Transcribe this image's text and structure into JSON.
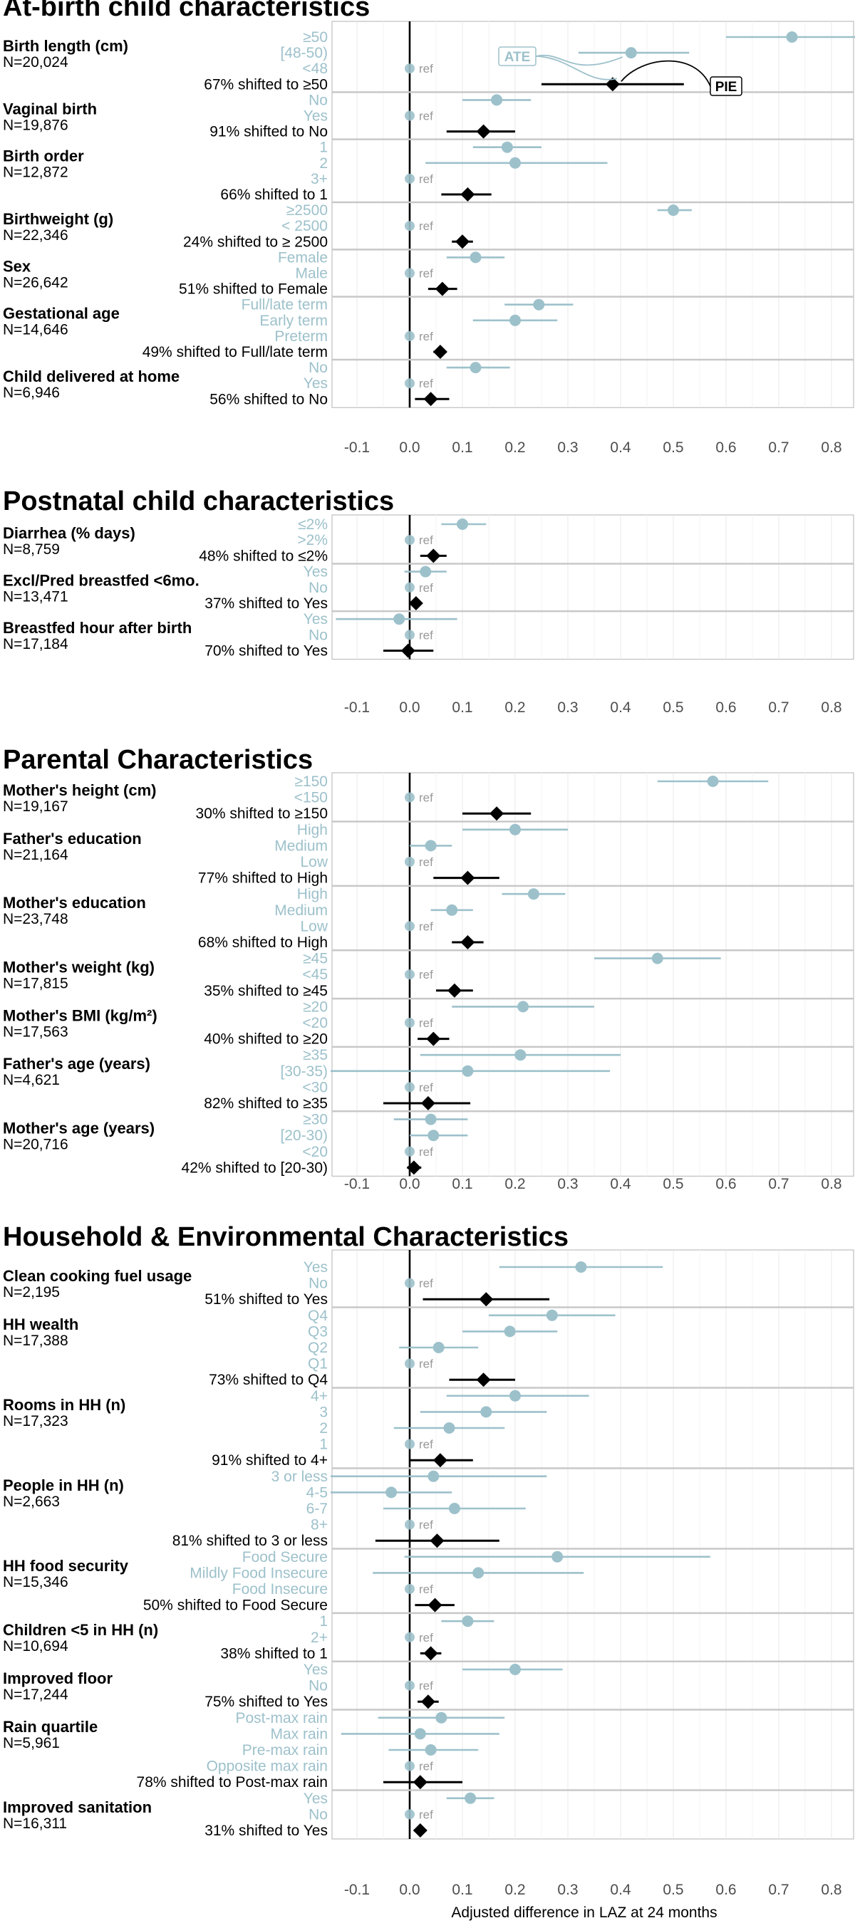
{
  "chart_data": {
    "type": "forest",
    "xlabel": "Adjusted difference in LAZ at 24 months",
    "xlim": [
      -0.2,
      0.85
    ],
    "ticks": [
      "-0.1",
      "0.0",
      "0.1",
      "0.2",
      "0.3",
      "0.4",
      "0.5",
      "0.6",
      "0.7",
      "0.8"
    ],
    "tick_values": [
      -0.1,
      0,
      0.1,
      0.2,
      0.3,
      0.4,
      0.5,
      0.6,
      0.7,
      0.8
    ],
    "ref_label": "ref",
    "colors": {
      "ate": "#9dc1cb",
      "pie": "#000000",
      "level_text": "#9dc1cb",
      "panel_border": "#bfbfbf",
      "grid": "#e8e8e8",
      "separator": "#c8c8c8"
    },
    "annotations": {
      "ate_label": "ATE",
      "pie_label": "PIE"
    },
    "panels": [
      {
        "title": "At-birth child characteristics",
        "variables": [
          {
            "name": "Birth length (cm)",
            "n": "N=20,024",
            "levels": [
              {
                "label": "≥50",
                "est": 0.725,
                "lo": 0.6,
                "hi": 0.85
              },
              {
                "label": "[48-50)",
                "est": 0.42,
                "lo": 0.32,
                "hi": 0.53
              },
              {
                "label": "<48",
                "ref": true
              }
            ],
            "pie": {
              "label": "67% shifted to ≥50",
              "est": 0.385,
              "lo": 0.25,
              "hi": 0.52
            }
          },
          {
            "name": "Vaginal birth",
            "n": "N=19,876",
            "levels": [
              {
                "label": "No",
                "est": 0.165,
                "lo": 0.1,
                "hi": 0.23
              },
              {
                "label": "Yes",
                "ref": true
              }
            ],
            "pie": {
              "label": "91% shifted to No",
              "est": 0.14,
              "lo": 0.07,
              "hi": 0.2
            }
          },
          {
            "name": "Birth order",
            "n": "N=12,872",
            "levels": [
              {
                "label": "1",
                "est": 0.185,
                "lo": 0.12,
                "hi": 0.25
              },
              {
                "label": "2",
                "est": 0.2,
                "lo": 0.03,
                "hi": 0.375
              },
              {
                "label": "3+",
                "ref": true
              }
            ],
            "pie": {
              "label": "66% shifted to 1",
              "est": 0.11,
              "lo": 0.06,
              "hi": 0.155
            }
          },
          {
            "name": "Birthweight (g)",
            "n": "N=22,346",
            "levels": [
              {
                "label": "≥2500",
                "est": 0.5,
                "lo": 0.47,
                "hi": 0.535
              },
              {
                "label": "< 2500",
                "ref": true
              }
            ],
            "pie": {
              "label": "24% shifted to ≥ 2500",
              "est": 0.1,
              "lo": 0.08,
              "hi": 0.12
            }
          },
          {
            "name": "Sex",
            "n": "N=26,642",
            "levels": [
              {
                "label": "Female",
                "est": 0.125,
                "lo": 0.07,
                "hi": 0.18
              },
              {
                "label": "Male",
                "ref": true
              }
            ],
            "pie": {
              "label": "51% shifted to Female",
              "est": 0.062,
              "lo": 0.035,
              "hi": 0.09
            }
          },
          {
            "name": "Gestational age",
            "n": "N=14,646",
            "levels": [
              {
                "label": "Full/late term",
                "est": 0.245,
                "lo": 0.18,
                "hi": 0.31
              },
              {
                "label": "Early term",
                "est": 0.2,
                "lo": 0.12,
                "hi": 0.28
              },
              {
                "label": "Preterm",
                "ref": true
              }
            ],
            "pie": {
              "label": "49% shifted to Full/late term",
              "est": 0.058,
              "lo": 0.045,
              "hi": 0.07
            }
          },
          {
            "name": "Child delivered at home",
            "n": "N=6,946",
            "levels": [
              {
                "label": "No",
                "est": 0.125,
                "lo": 0.07,
                "hi": 0.19
              },
              {
                "label": "Yes",
                "ref": true
              }
            ],
            "pie": {
              "label": "56% shifted to No",
              "est": 0.04,
              "lo": 0.01,
              "hi": 0.075
            }
          }
        ]
      },
      {
        "title": "Postnatal child characteristics",
        "variables": [
          {
            "name": "Diarrhea (% days)",
            "n": "N=8,759",
            "levels": [
              {
                "label": "≤2%",
                "est": 0.1,
                "lo": 0.06,
                "hi": 0.145
              },
              {
                "label": ">2%",
                "ref": true
              }
            ],
            "pie": {
              "label": "48% shifted to ≤2%",
              "est": 0.045,
              "lo": 0.02,
              "hi": 0.07
            }
          },
          {
            "name": "Excl/Pred breastfed <6mo.",
            "n": "N=13,471",
            "levels": [
              {
                "label": "Yes",
                "est": 0.03,
                "lo": -0.01,
                "hi": 0.07
              },
              {
                "label": "No",
                "ref": true
              }
            ],
            "pie": {
              "label": "37% shifted to Yes",
              "est": 0.012,
              "lo": 0.002,
              "hi": 0.022
            }
          },
          {
            "name": "Breastfed hour after birth",
            "n": "N=17,184",
            "levels": [
              {
                "label": "Yes",
                "est": -0.02,
                "lo": -0.14,
                "hi": 0.09
              },
              {
                "label": "No",
                "ref": true
              }
            ],
            "pie": {
              "label": "70% shifted to Yes",
              "est": -0.003,
              "lo": -0.05,
              "hi": 0.045
            }
          }
        ]
      },
      {
        "title": "Parental Characteristics",
        "variables": [
          {
            "name": "Mother's height (cm)",
            "n": "N=19,167",
            "levels": [
              {
                "label": "≥150",
                "est": 0.575,
                "lo": 0.47,
                "hi": 0.68
              },
              {
                "label": "<150",
                "ref": true
              }
            ],
            "pie": {
              "label": "30% shifted to ≥150",
              "est": 0.165,
              "lo": 0.1,
              "hi": 0.23
            }
          },
          {
            "name": "Father's education",
            "n": "N=21,164",
            "levels": [
              {
                "label": "High",
                "est": 0.2,
                "lo": 0.1,
                "hi": 0.3
              },
              {
                "label": "Medium",
                "est": 0.04,
                "lo": 0.0,
                "hi": 0.08
              },
              {
                "label": "Low",
                "ref": true
              }
            ],
            "pie": {
              "label": "77% shifted to High",
              "est": 0.11,
              "lo": 0.045,
              "hi": 0.17
            }
          },
          {
            "name": "Mother's education",
            "n": "N=23,748",
            "levels": [
              {
                "label": "High",
                "est": 0.235,
                "lo": 0.175,
                "hi": 0.295
              },
              {
                "label": "Medium",
                "est": 0.08,
                "lo": 0.04,
                "hi": 0.12
              },
              {
                "label": "Low",
                "ref": true
              }
            ],
            "pie": {
              "label": "68% shifted to High",
              "est": 0.11,
              "lo": 0.08,
              "hi": 0.14
            }
          },
          {
            "name": "Mother's weight (kg)",
            "n": "N=17,815",
            "levels": [
              {
                "label": "≥45",
                "est": 0.47,
                "lo": 0.35,
                "hi": 0.59
              },
              {
                "label": "<45",
                "ref": true
              }
            ],
            "pie": {
              "label": "35% shifted to ≥45",
              "est": 0.085,
              "lo": 0.05,
              "hi": 0.12
            }
          },
          {
            "name": "Mother's BMI (kg/m²)",
            "n": "N=17,563",
            "levels": [
              {
                "label": "≥20",
                "est": 0.215,
                "lo": 0.08,
                "hi": 0.35
              },
              {
                "label": "<20",
                "ref": true
              }
            ],
            "pie": {
              "label": "40% shifted to ≥20",
              "est": 0.045,
              "lo": 0.015,
              "hi": 0.075
            }
          },
          {
            "name": "Father's age (years)",
            "n": "N=4,621",
            "levels": [
              {
                "label": "≥35",
                "est": 0.21,
                "lo": 0.02,
                "hi": 0.4
              },
              {
                "label": "[30-35)",
                "est": 0.11,
                "lo": -0.15,
                "hi": 0.38
              },
              {
                "label": "<30",
                "ref": true
              }
            ],
            "pie": {
              "label": "82% shifted to ≥35",
              "est": 0.035,
              "lo": -0.05,
              "hi": 0.115
            }
          },
          {
            "name": "Mother's age (years)",
            "n": "N=20,716",
            "levels": [
              {
                "label": "≥30",
                "est": 0.04,
                "lo": -0.03,
                "hi": 0.11
              },
              {
                "label": "[20-30)",
                "est": 0.045,
                "lo": 0.0,
                "hi": 0.11
              },
              {
                "label": "<20",
                "ref": true
              }
            ],
            "pie": {
              "label": "42% shifted to [20-30)",
              "est": 0.008,
              "lo": -0.005,
              "hi": 0.022
            }
          }
        ]
      },
      {
        "title": "Household & Environmental Characteristics",
        "variables": [
          {
            "name": "Clean cooking fuel usage",
            "n": "N=2,195",
            "levels": [
              {
                "label": "Yes",
                "est": 0.325,
                "lo": 0.17,
                "hi": 0.48
              },
              {
                "label": "No",
                "ref": true
              }
            ],
            "pie": {
              "label": "51% shifted to Yes",
              "est": 0.145,
              "lo": 0.025,
              "hi": 0.265
            }
          },
          {
            "name": "HH wealth",
            "n": "N=17,388",
            "levels": [
              {
                "label": "Q4",
                "est": 0.27,
                "lo": 0.15,
                "hi": 0.39
              },
              {
                "label": "Q3",
                "est": 0.19,
                "lo": 0.1,
                "hi": 0.28
              },
              {
                "label": "Q2",
                "est": 0.055,
                "lo": -0.02,
                "hi": 0.13
              },
              {
                "label": "Q1",
                "ref": true
              }
            ],
            "pie": {
              "label": "73% shifted to Q4",
              "est": 0.14,
              "lo": 0.075,
              "hi": 0.2
            }
          },
          {
            "name": "Rooms in HH (n)",
            "n": "N=17,323",
            "levels": [
              {
                "label": "4+",
                "est": 0.2,
                "lo": 0.07,
                "hi": 0.34
              },
              {
                "label": "3",
                "est": 0.145,
                "lo": 0.02,
                "hi": 0.26
              },
              {
                "label": "2",
                "est": 0.075,
                "lo": -0.03,
                "hi": 0.18
              },
              {
                "label": "1",
                "ref": true
              }
            ],
            "pie": {
              "label": "91% shifted to 4+",
              "est": 0.058,
              "lo": 0.0,
              "hi": 0.12
            }
          },
          {
            "name": "People in HH (n)",
            "n": "N=2,663",
            "levels": [
              {
                "label": "3 or less",
                "est": 0.045,
                "lo": -0.15,
                "hi": 0.26
              },
              {
                "label": "4-5",
                "est": -0.035,
                "lo": -0.15,
                "hi": 0.08
              },
              {
                "label": "6-7",
                "est": 0.085,
                "lo": -0.05,
                "hi": 0.22
              },
              {
                "label": "8+",
                "ref": true
              }
            ],
            "pie": {
              "label": "81% shifted to 3 or less",
              "est": 0.052,
              "lo": -0.065,
              "hi": 0.17
            }
          },
          {
            "name": "HH food security",
            "n": "N=15,346",
            "levels": [
              {
                "label": "Food Secure",
                "est": 0.28,
                "lo": -0.01,
                "hi": 0.57
              },
              {
                "label": "Mildly Food Insecure",
                "est": 0.13,
                "lo": -0.07,
                "hi": 0.33
              },
              {
                "label": "Food Insecure",
                "ref": true
              }
            ],
            "pie": {
              "label": "50% shifted to Food Secure",
              "est": 0.048,
              "lo": 0.01,
              "hi": 0.085
            }
          },
          {
            "name": "Children <5 in HH (n)",
            "n": "N=10,694",
            "levels": [
              {
                "label": "1",
                "est": 0.11,
                "lo": 0.06,
                "hi": 0.16
              },
              {
                "label": "2+",
                "ref": true
              }
            ],
            "pie": {
              "label": "38% shifted to 1",
              "est": 0.04,
              "lo": 0.02,
              "hi": 0.06
            }
          },
          {
            "name": "Improved floor",
            "n": "N=17,244",
            "levels": [
              {
                "label": "Yes",
                "est": 0.2,
                "lo": 0.1,
                "hi": 0.29
              },
              {
                "label": "No",
                "ref": true
              }
            ],
            "pie": {
              "label": "75% shifted to Yes",
              "est": 0.035,
              "lo": 0.015,
              "hi": 0.055
            }
          },
          {
            "name": "Rain quartile",
            "n": "N=5,961",
            "levels": [
              {
                "label": "Post-max rain",
                "est": 0.06,
                "lo": -0.06,
                "hi": 0.18
              },
              {
                "label": "Max rain",
                "est": 0.02,
                "lo": -0.13,
                "hi": 0.17
              },
              {
                "label": "Pre-max rain",
                "est": 0.04,
                "lo": -0.04,
                "hi": 0.13
              },
              {
                "label": "Opposite max rain",
                "ref": true
              }
            ],
            "pie": {
              "label": "78% shifted to Post-max rain",
              "est": 0.02,
              "lo": -0.05,
              "hi": 0.1
            }
          },
          {
            "name": "Improved sanitation",
            "n": "N=16,311",
            "levels": [
              {
                "label": "Yes",
                "est": 0.115,
                "lo": 0.07,
                "hi": 0.16
              },
              {
                "label": "No",
                "ref": true
              }
            ],
            "pie": {
              "label": "31% shifted to Yes",
              "est": 0.02,
              "lo": 0.008,
              "hi": 0.032
            }
          }
        ]
      }
    ]
  }
}
